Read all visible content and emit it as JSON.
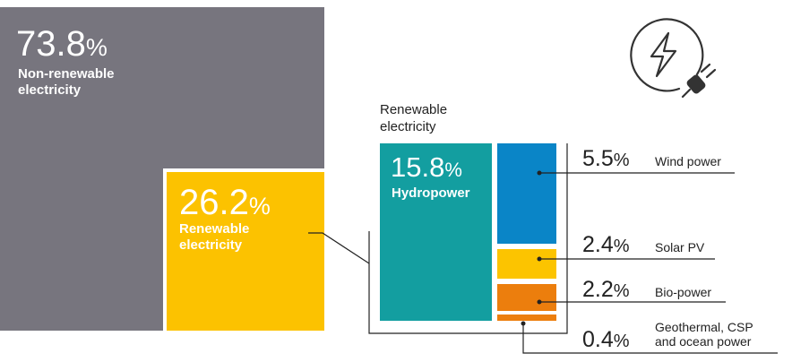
{
  "colors": {
    "non_renewable": "#77757e",
    "renewable": "#fcc200",
    "hydropower": "#139ea0",
    "wind": "#0a85c7",
    "solar": "#fcc400",
    "bio": "#ec7e0d",
    "geothermal": "#ec7e0d",
    "text": "#222222",
    "icon": "#333333"
  },
  "icon": "electricity-plug-icon",
  "chart_data": {
    "type": "treemap",
    "unit": "%",
    "top_level": [
      {
        "name": "Non-renewable electricity",
        "value": 73.8,
        "display": "73.8"
      },
      {
        "name": "Renewable electricity",
        "value": 26.2,
        "display": "26.2"
      }
    ],
    "breakdown_title": "Renewable electricity",
    "breakdown": [
      {
        "name": "Hydropower",
        "value": 15.8,
        "display": "15.8"
      },
      {
        "name": "Wind power",
        "value": 5.5,
        "display": "5.5"
      },
      {
        "name": "Solar PV",
        "value": 2.4,
        "display": "2.4"
      },
      {
        "name": "Bio-power",
        "value": 2.2,
        "display": "2.2"
      },
      {
        "name": "Geothermal, CSP and ocean power",
        "value": 0.4,
        "display": "0.4"
      }
    ],
    "labels": {
      "non_renewable": [
        "Non-renewable",
        "electricity"
      ],
      "renewable": [
        "Renewable",
        "electricity"
      ],
      "breakdown_title": [
        "Renewable",
        "electricity"
      ],
      "geothermal": [
        "Geothermal, CSP",
        "and ocean power"
      ]
    },
    "pct_sign": "%"
  }
}
